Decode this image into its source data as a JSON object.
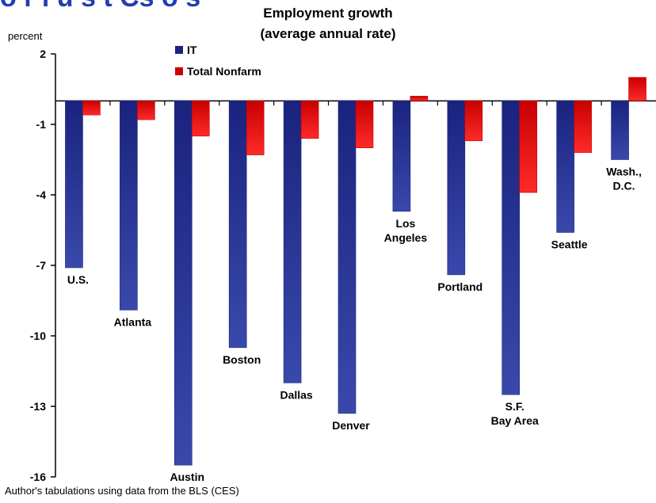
{
  "colors": {
    "it": "#1a237e",
    "it_light": "#3949ab",
    "nonfarm": "#c80000",
    "nonfarm_light": "#ff2a2a",
    "axis": "#000000"
  },
  "header": {
    "cut_title": "o r  i u s t   Cs o s"
  },
  "source_note": "Author's tabulations using data from the BLS (CES)",
  "chart_data": {
    "type": "bar",
    "title": [
      "Employment growth",
      "(average annual rate)"
    ],
    "ylabel": "percent",
    "ylim": [
      -16,
      2
    ],
    "yticks": [
      2,
      -1,
      -4,
      -7,
      -10,
      -13,
      -16
    ],
    "yticks_labels": [
      "2",
      "-1",
      "-4",
      "-7",
      "-10",
      "-13",
      "-16"
    ],
    "legend": {
      "position": "top-center",
      "entries": [
        "IT",
        "Total Nonfarm"
      ]
    },
    "categories": [
      [
        "U.S."
      ],
      [
        "Atlanta"
      ],
      [
        "Austin"
      ],
      [
        "Boston"
      ],
      [
        "Dallas"
      ],
      [
        "Denver"
      ],
      [
        "Los",
        "Angeles"
      ],
      [
        "Portland"
      ],
      [
        "S.F.",
        "Bay Area"
      ],
      [
        "Seattle"
      ],
      [
        "Wash.,",
        "D.C."
      ]
    ],
    "series": [
      {
        "name": "IT",
        "values": [
          -7.1,
          -8.9,
          -15.5,
          -10.5,
          -12.0,
          -13.3,
          -4.7,
          -7.4,
          -12.5,
          -5.6,
          -2.5
        ]
      },
      {
        "name": "Total Nonfarm",
        "values": [
          -0.6,
          -0.8,
          -1.5,
          -2.3,
          -1.6,
          -2.0,
          0.2,
          -1.7,
          -3.9,
          -2.2,
          1.0
        ]
      }
    ]
  }
}
